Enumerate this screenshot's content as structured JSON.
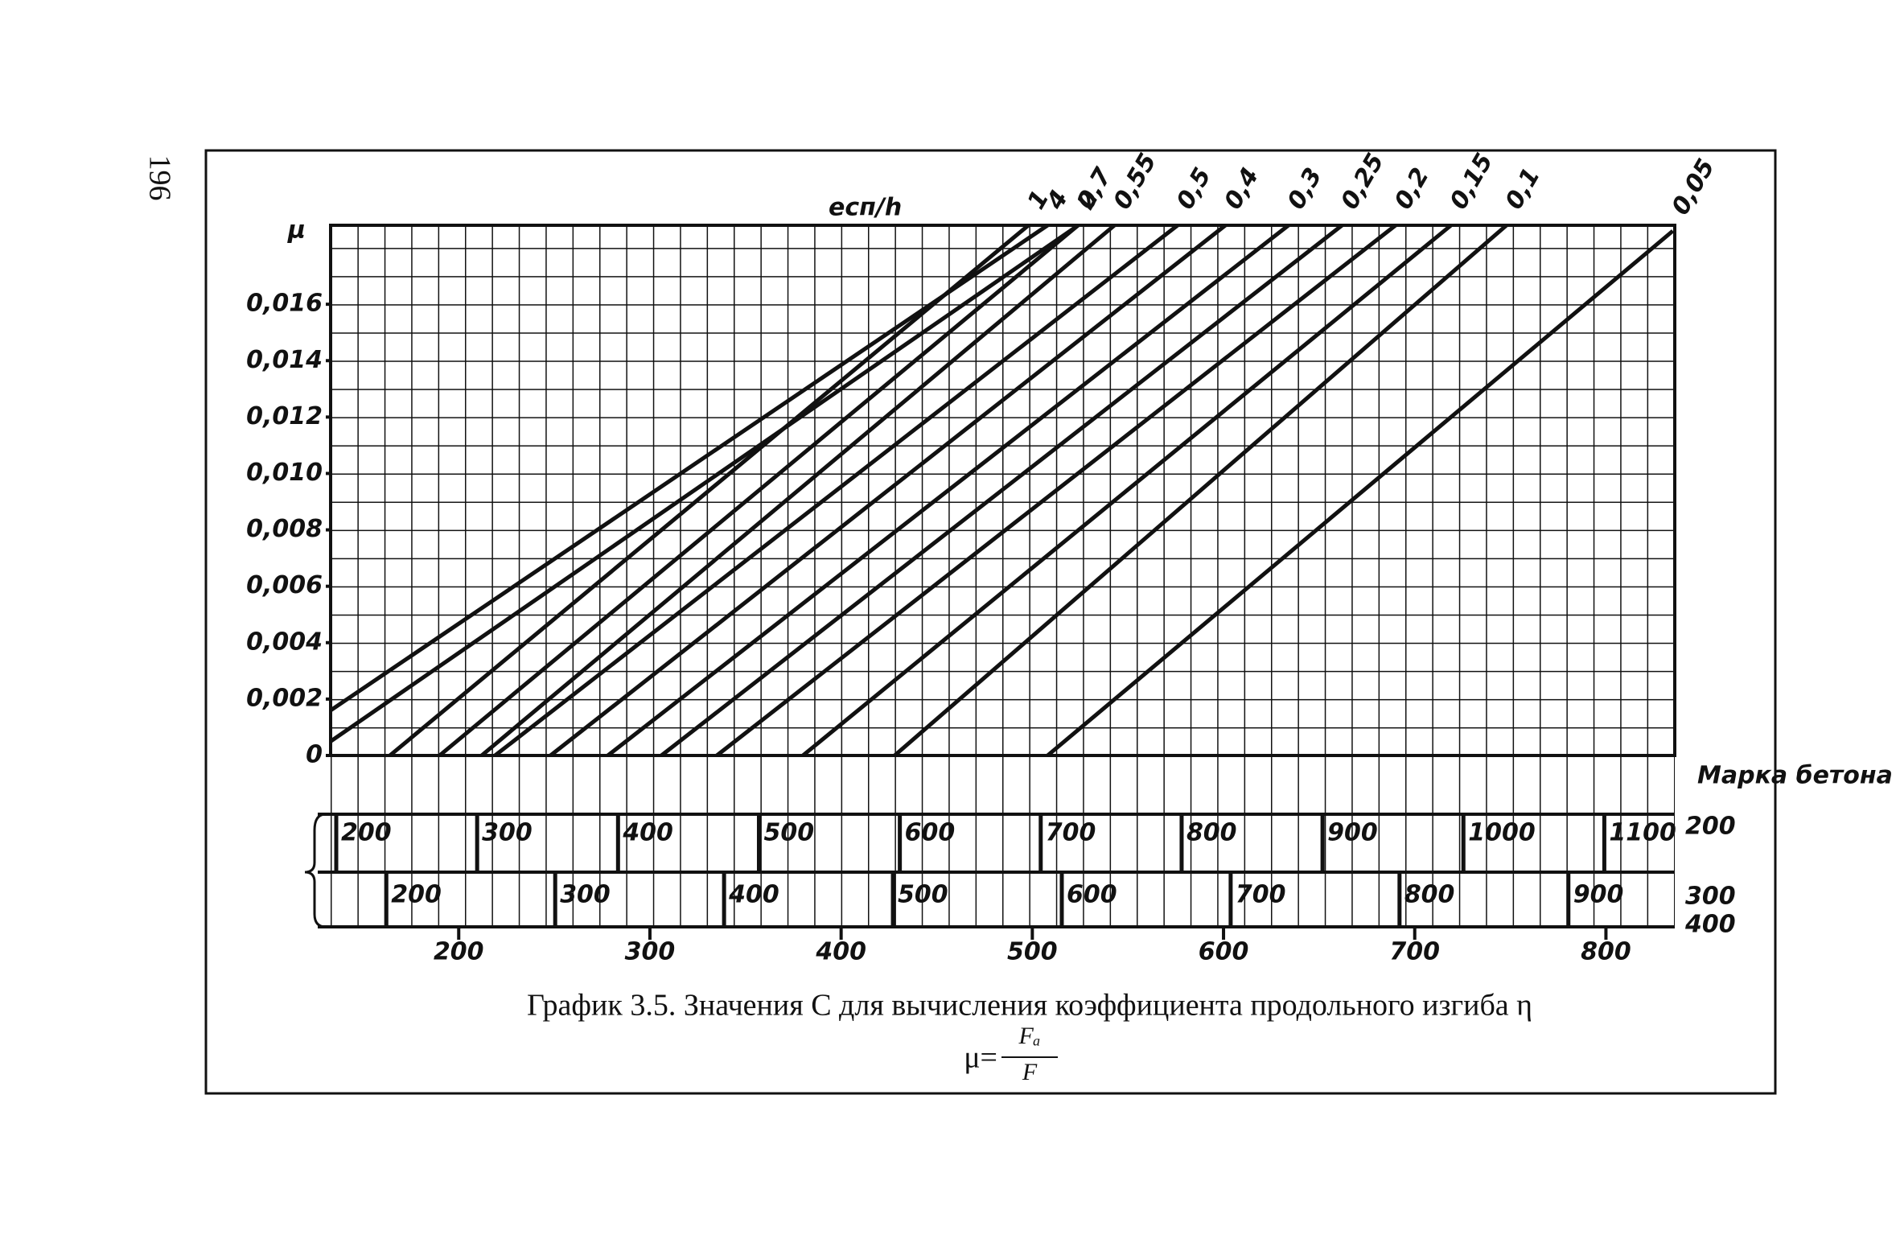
{
  "page_number": "196",
  "chart_data": {
    "type": "line",
    "title": "График 3.5. Значения C для вычисления коэффициента продольного изгиба η",
    "formula": {
      "lhs": "μ=",
      "numerator": "Fₐ",
      "denominator": "F"
    },
    "y_label": "μ",
    "series_label": "eсп/h",
    "grade_axis_label": "Марка бетона",
    "ylim": [
      0,
      0.0188
    ],
    "yticks": [
      0,
      {
        "value": 0.002,
        "label": "0,002"
      },
      {
        "value": 0.004,
        "label": "0,004"
      },
      {
        "value": 0.006,
        "label": "0,006"
      },
      {
        "value": 0.008,
        "label": "0,008"
      },
      {
        "value": 0.01,
        "label": "0,010"
      },
      {
        "value": 0.012,
        "label": "0,012"
      },
      {
        "value": 0.014,
        "label": "0,014"
      },
      {
        "value": 0.016,
        "label": "0,016"
      }
    ],
    "xlim": [
      133,
      836
    ],
    "xticks": [
      200,
      300,
      400,
      500,
      600,
      700,
      800
    ],
    "main_grade": "400",
    "grade_scales": [
      {
        "grade": "200",
        "xlim": [
          196,
          1150
        ],
        "ticks": [
          200,
          300,
          400,
          500,
          600,
          700,
          800,
          900,
          1000,
          1100
        ]
      },
      {
        "grade": "300",
        "xlim": [
          167,
          963
        ],
        "ticks": [
          200,
          300,
          400,
          500,
          600,
          700,
          800,
          900
        ]
      }
    ],
    "color": "#111111",
    "series": [
      {
        "name": "4",
        "x": [
          133,
          508
        ],
        "values": [
          0.0016,
          0.0188
        ]
      },
      {
        "name": "2",
        "x": [
          133,
          524
        ],
        "values": [
          0.0005,
          0.0188
        ]
      },
      {
        "name": "1",
        "x": [
          164,
          498
        ],
        "values": [
          0,
          0.0188
        ]
      },
      {
        "name": "0,7",
        "x": [
          190,
          524
        ],
        "values": [
          0,
          0.0188
        ]
      },
      {
        "name": "0,55",
        "x": [
          212,
          543
        ],
        "values": [
          0,
          0.0188
        ]
      },
      {
        "name": "0,5",
        "x": [
          219,
          576
        ],
        "values": [
          0,
          0.0188
        ]
      },
      {
        "name": "0,4",
        "x": [
          248,
          601
        ],
        "values": [
          0,
          0.0188
        ]
      },
      {
        "name": "0,3",
        "x": [
          278,
          634
        ],
        "values": [
          0,
          0.0188
        ]
      },
      {
        "name": "0,25",
        "x": [
          306,
          662
        ],
        "values": [
          0,
          0.0188
        ]
      },
      {
        "name": "0,2",
        "x": [
          335,
          690
        ],
        "values": [
          0,
          0.0188
        ]
      },
      {
        "name": "0,15",
        "x": [
          380,
          719
        ],
        "values": [
          0,
          0.0188
        ]
      },
      {
        "name": "0,1",
        "x": [
          428,
          748
        ],
        "values": [
          0,
          0.0188
        ]
      },
      {
        "name": "0,05",
        "x": [
          508,
          835
        ],
        "values": [
          0,
          0.0186
        ]
      }
    ]
  }
}
